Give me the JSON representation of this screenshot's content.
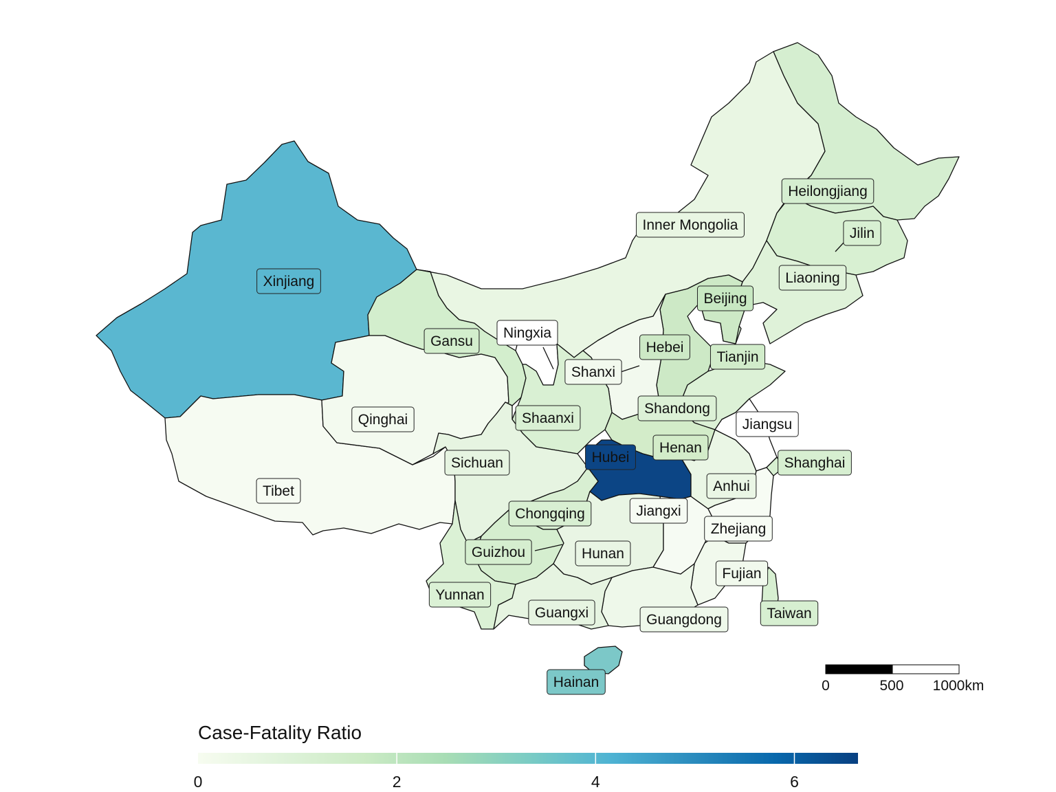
{
  "legend": {
    "title": "Case-Fatality Ratio",
    "ticks": [
      "0",
      "2",
      "4",
      "6"
    ],
    "min": 0,
    "max": 6.64,
    "tick_values": [
      0,
      2,
      4,
      6
    ],
    "colors": [
      "#f7fcf0",
      "#e0f3db",
      "#ccebc5",
      "#a8ddb5",
      "#7bccc4",
      "#4eb3d3",
      "#2b8cbe",
      "#0868ac",
      "#084081"
    ]
  },
  "scale_bar": {
    "labels": [
      "0",
      "500",
      "1000km"
    ]
  },
  "provinces": [
    {
      "name": "Xinjiang",
      "fill": "#5ab7d0"
    },
    {
      "name": "Tibet",
      "fill": "#f6fbf2"
    },
    {
      "name": "Qinghai",
      "fill": "#f3faef"
    },
    {
      "name": "Gansu",
      "fill": "#d3eecd"
    },
    {
      "name": "Inner Mongolia",
      "fill": "#e9f6e3"
    },
    {
      "name": "Heilongjiang",
      "fill": "#d5eed0"
    },
    {
      "name": "Jilin",
      "fill": "#d8f0d2"
    },
    {
      "name": "Liaoning",
      "fill": "#dff2d9"
    },
    {
      "name": "Beijing",
      "fill": "#c8e8c2"
    },
    {
      "name": "Tianjin",
      "fill": "#d1ecca"
    },
    {
      "name": "Hebei",
      "fill": "#cde9c6"
    },
    {
      "name": "Shanxi",
      "fill": "#f2f9ee"
    },
    {
      "name": "Ningxia",
      "fill": "#ffffff"
    },
    {
      "name": "Shaanxi",
      "fill": "#d9f0d3"
    },
    {
      "name": "Shandong",
      "fill": "#dcf1d6"
    },
    {
      "name": "Henan",
      "fill": "#d3ecc9"
    },
    {
      "name": "Hubei",
      "fill": "#0c4585"
    },
    {
      "name": "Sichuan",
      "fill": "#e6f4e1"
    },
    {
      "name": "Chongqing",
      "fill": "#d8efd2"
    },
    {
      "name": "Guizhou",
      "fill": "#d5eecf"
    },
    {
      "name": "Yunnan",
      "fill": "#dbf1d5"
    },
    {
      "name": "Hunan",
      "fill": "#e9f5e4"
    },
    {
      "name": "Jiangxi",
      "fill": "#f6fbf3"
    },
    {
      "name": "Anhui",
      "fill": "#eaf6e5"
    },
    {
      "name": "Jiangsu",
      "fill": "#ffffff"
    },
    {
      "name": "Shanghai",
      "fill": "#d7efd1"
    },
    {
      "name": "Zhejiang",
      "fill": "#f7fcf4"
    },
    {
      "name": "Fujian",
      "fill": "#f1f9ed"
    },
    {
      "name": "Guangxi",
      "fill": "#e6f4e1"
    },
    {
      "name": "Guangdong",
      "fill": "#eef8ea"
    },
    {
      "name": "Taiwan",
      "fill": "#d7efd1"
    },
    {
      "name": "Hainan",
      "fill": "#7cc8c8"
    }
  ]
}
